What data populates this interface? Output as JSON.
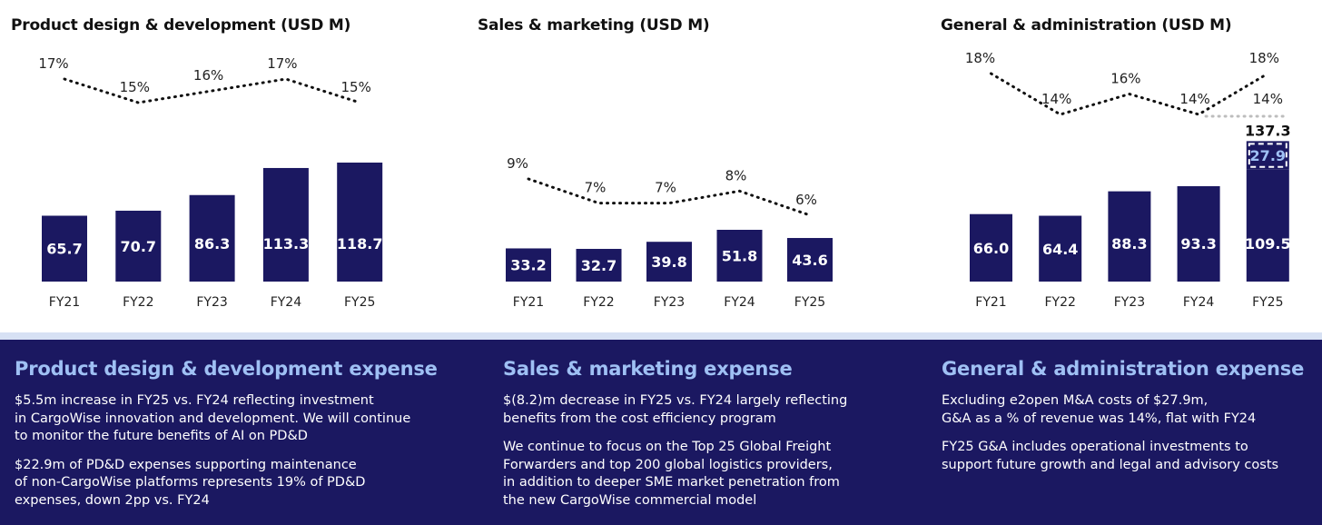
{
  "chart_data": [
    {
      "type": "bar",
      "title": "Product design & development (USD M)",
      "categories": [
        "FY21",
        "FY22",
        "FY23",
        "FY24",
        "FY25"
      ],
      "values": [
        65.7,
        70.7,
        86.3,
        113.3,
        118.7
      ],
      "value_labels": [
        "65.7",
        "70.7",
        "86.3",
        "113.3",
        "118.7"
      ],
      "pct_line": {
        "values": [
          17,
          15,
          16,
          17,
          15
        ],
        "labels": [
          "17%",
          "15%",
          "16%",
          "17%",
          "15%"
        ],
        "style": "dotted"
      },
      "bar_color": "#1b1861"
    },
    {
      "type": "bar",
      "title": "Sales & marketing (USD M)",
      "categories": [
        "FY21",
        "FY22",
        "FY23",
        "FY24",
        "FY25"
      ],
      "values": [
        33.2,
        32.7,
        39.8,
        51.8,
        43.6
      ],
      "value_labels": [
        "33.2",
        "32.7",
        "39.8",
        "51.8",
        "43.6"
      ],
      "pct_line": {
        "values": [
          9,
          7,
          7,
          8,
          6
        ],
        "labels": [
          "9%",
          "7%",
          "7%",
          "8%",
          "6%"
        ],
        "style": "dotted"
      },
      "bar_color": "#1b1861"
    },
    {
      "type": "bar",
      "title": "General & administration (USD M)",
      "categories": [
        "FY21",
        "FY22",
        "FY23",
        "FY24",
        "FY25"
      ],
      "values": [
        66.0,
        64.4,
        88.3,
        93.3,
        109.5
      ],
      "value_labels": [
        "66.0",
        "64.4",
        "88.3",
        "93.3",
        "109.5"
      ],
      "stacked_extra": {
        "index": 4,
        "value": 27.9,
        "label": "27.9",
        "total_label": "137.3"
      },
      "pct_line": {
        "values": [
          18,
          14,
          16,
          14,
          18
        ],
        "labels": [
          "18%",
          "14%",
          "16%",
          "14%",
          "18%"
        ],
        "style": "dotted"
      },
      "pct_line_excl": {
        "from_index": 3,
        "to_index": 4,
        "value": 14,
        "label": "14%",
        "color": "#bdbdbd"
      },
      "bar_color": "#1b1861"
    }
  ],
  "footer": {
    "pdd": {
      "title": "Product design & development expense",
      "p1": "$5.5m increase in FY25 vs. FY24 reflecting investment\nin CargoWise innovation and development. We will continue\nto monitor the future benefits of AI on PD&D",
      "p2": "$22.9m of PD&D expenses supporting maintenance\nof non-CargoWise platforms represents 19% of PD&D\nexpenses, down 2pp vs. FY24"
    },
    "sm": {
      "title": "Sales & marketing expense",
      "p1": "$(8.2)m decrease in FY25 vs. FY24 largely reflecting\nbenefits from the cost efficiency program",
      "p2": "We continue to focus on the Top 25 Global Freight\nForwarders and top 200 global logistics providers,\nin addition to deeper SME market penetration from\nthe new CargoWise commercial model"
    },
    "ga": {
      "title": "General & administration expense",
      "p1": "Excluding e2open M&A costs of $27.9m,\nG&A as a % of revenue was 14%, flat with FY24",
      "p2": "FY25 G&A includes operational investments to\nsupport future growth and legal and advisory costs"
    }
  },
  "colors": {
    "bar": "#1b1861",
    "footer_bg": "#1b1861",
    "footer_heading": "#9fc0f4",
    "band": "#d7e1f4"
  }
}
